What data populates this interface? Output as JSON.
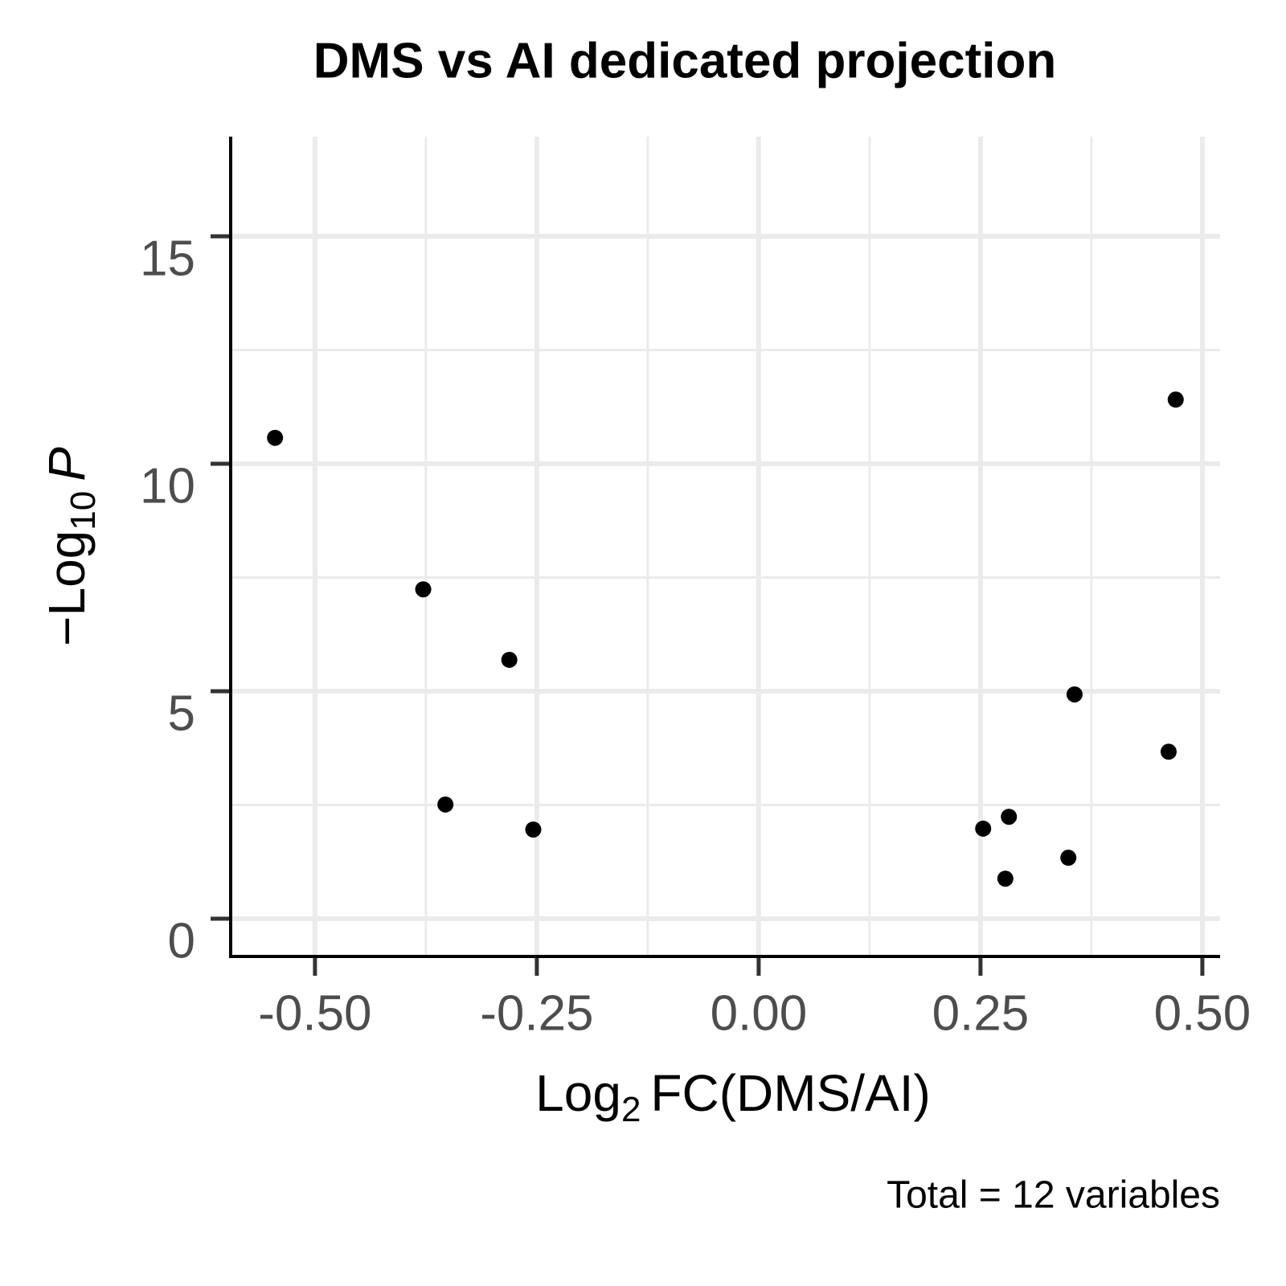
{
  "chart_data": {
    "type": "scatter",
    "title": "DMS vs AI dedicated projection",
    "x_label": {
      "main": "Log",
      "sub": "2",
      "rest": "FC(DMS/AI)"
    },
    "y_label": {
      "main": "−Log",
      "sub": "10",
      "rest": "P"
    },
    "caption": "Total = 12 variables",
    "x": [
      -0.545,
      -0.378,
      -0.281,
      -0.353,
      -0.254,
      0.253,
      0.282,
      0.278,
      0.349,
      0.356,
      0.462,
      0.47
    ],
    "values": [
      10.57,
      7.24,
      5.69,
      2.51,
      1.96,
      1.98,
      2.24,
      0.88,
      1.34,
      4.93,
      3.67,
      11.41
    ],
    "color": "#000000",
    "xlim": [
      -0.595,
      0.52
    ],
    "ylim": [
      -0.83,
      17.19
    ],
    "xticks": [
      {
        "value": -0.5,
        "label": "-0.50"
      },
      {
        "value": -0.25,
        "label": "-0.25"
      },
      {
        "value": 0,
        "label": "0.00"
      },
      {
        "value": 0.25,
        "label": "0.25"
      },
      {
        "value": 0.5,
        "label": "0.50"
      }
    ],
    "yticks": [
      0,
      5,
      10,
      15
    ],
    "grid": true
  }
}
